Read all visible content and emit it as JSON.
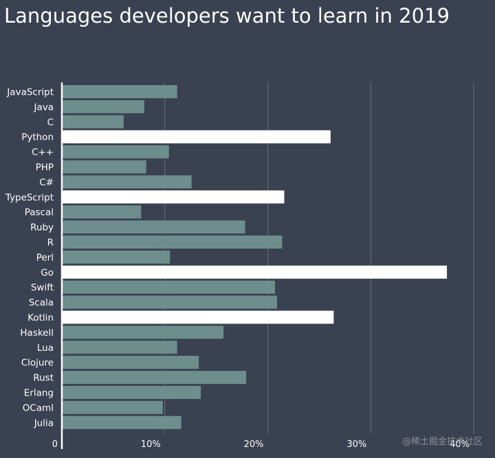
{
  "title": "Languages developers want to learn in 2019",
  "watermark": "@稀土掘金技术社区",
  "colors": {
    "background": "#3a4150",
    "bar_default": "#6e8e8e",
    "bar_highlight": "#ffffff",
    "grid": "#6b717c",
    "axis": "#ffffff",
    "text": "#ffffff"
  },
  "chart_data": {
    "type": "bar",
    "orientation": "horizontal",
    "categories": [
      "JavaScript",
      "Java",
      "C",
      "Python",
      "C++",
      "PHP",
      "C#",
      "TypeScript",
      "Pascal",
      "Ruby",
      "R",
      "Perl",
      "Go",
      "Swift",
      "Scala",
      "Kotlin",
      "Haskell",
      "Lua",
      "Clojure",
      "Rust",
      "Erlang",
      "OCaml",
      "Julia"
    ],
    "values": [
      11.2,
      8.0,
      6.0,
      26.1,
      10.4,
      8.2,
      12.6,
      21.6,
      7.7,
      17.8,
      21.4,
      10.5,
      37.4,
      20.7,
      20.9,
      26.4,
      15.7,
      11.2,
      13.3,
      17.9,
      13.5,
      9.8,
      11.6
    ],
    "highlighted": [
      "Python",
      "TypeScript",
      "Go",
      "Kotlin"
    ],
    "xticks": [
      "0",
      "10%",
      "20%",
      "30%",
      "40%"
    ],
    "tick_values": [
      0,
      10,
      20,
      30,
      40
    ],
    "xlim": [
      0,
      40
    ],
    "grid": true
  }
}
